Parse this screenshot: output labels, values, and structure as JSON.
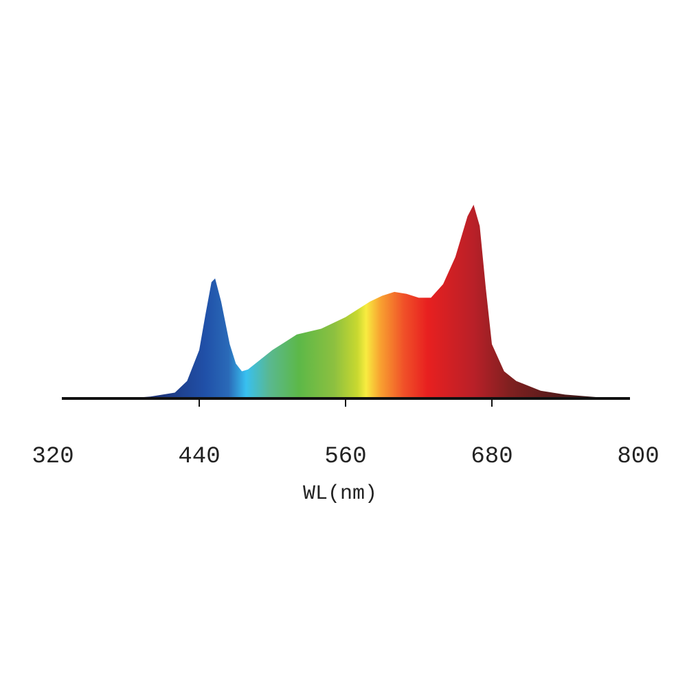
{
  "chart_data": {
    "type": "area",
    "x_label": "WL(nm)",
    "x": [
      320,
      360,
      380,
      400,
      420,
      430,
      440,
      445,
      450,
      453,
      458,
      465,
      470,
      475,
      480,
      490,
      500,
      510,
      520,
      540,
      560,
      580,
      590,
      600,
      610,
      620,
      630,
      640,
      650,
      660,
      665,
      670,
      675,
      680,
      690,
      700,
      720,
      740,
      760,
      780,
      800
    ],
    "values": [
      0,
      0,
      0,
      0.01,
      0.03,
      0.09,
      0.25,
      0.43,
      0.6,
      0.62,
      0.5,
      0.28,
      0.18,
      0.14,
      0.15,
      0.2,
      0.25,
      0.29,
      0.33,
      0.36,
      0.42,
      0.5,
      0.53,
      0.55,
      0.54,
      0.52,
      0.52,
      0.59,
      0.73,
      0.94,
      1.0,
      0.89,
      0.57,
      0.28,
      0.14,
      0.09,
      0.04,
      0.02,
      0.01,
      0,
      0
    ],
    "xlim": [
      320,
      800
    ],
    "xticks": [
      320,
      440,
      560,
      680,
      800
    ],
    "ylim": [
      0,
      1
    ]
  }
}
